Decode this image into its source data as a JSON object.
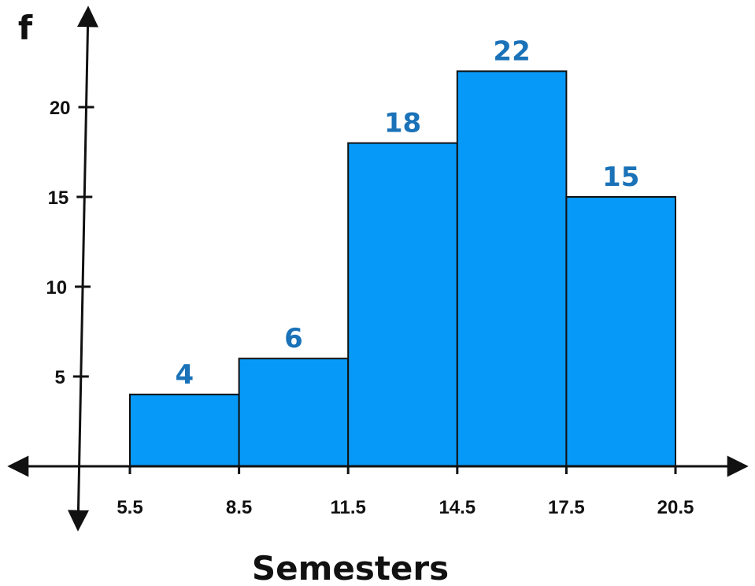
{
  "chart_data": {
    "type": "bar",
    "bin_edges": [
      5.5,
      8.5,
      11.5,
      14.5,
      17.5,
      20.5
    ],
    "x_tick_labels": [
      "5.5",
      "8.5",
      "11.5",
      "14.5",
      "17.5",
      "20.5"
    ],
    "values": [
      4,
      6,
      18,
      22,
      15
    ],
    "data_labels": [
      "4",
      "6",
      "18",
      "22",
      "15"
    ],
    "y_ticks": [
      5,
      10,
      15,
      20
    ],
    "y_tick_labels": [
      "5",
      "10",
      "15",
      "20"
    ],
    "xlabel": "Semesters",
    "ylabel": "f",
    "ylim": [
      0,
      23
    ],
    "xlim": [
      5.5,
      20.5
    ],
    "grid": false,
    "legend": "none",
    "colors": {
      "bar_fill": "#0799f7",
      "bar_stroke": "#111111",
      "data_label": "#1a72b8",
      "axis": "#111111"
    }
  }
}
